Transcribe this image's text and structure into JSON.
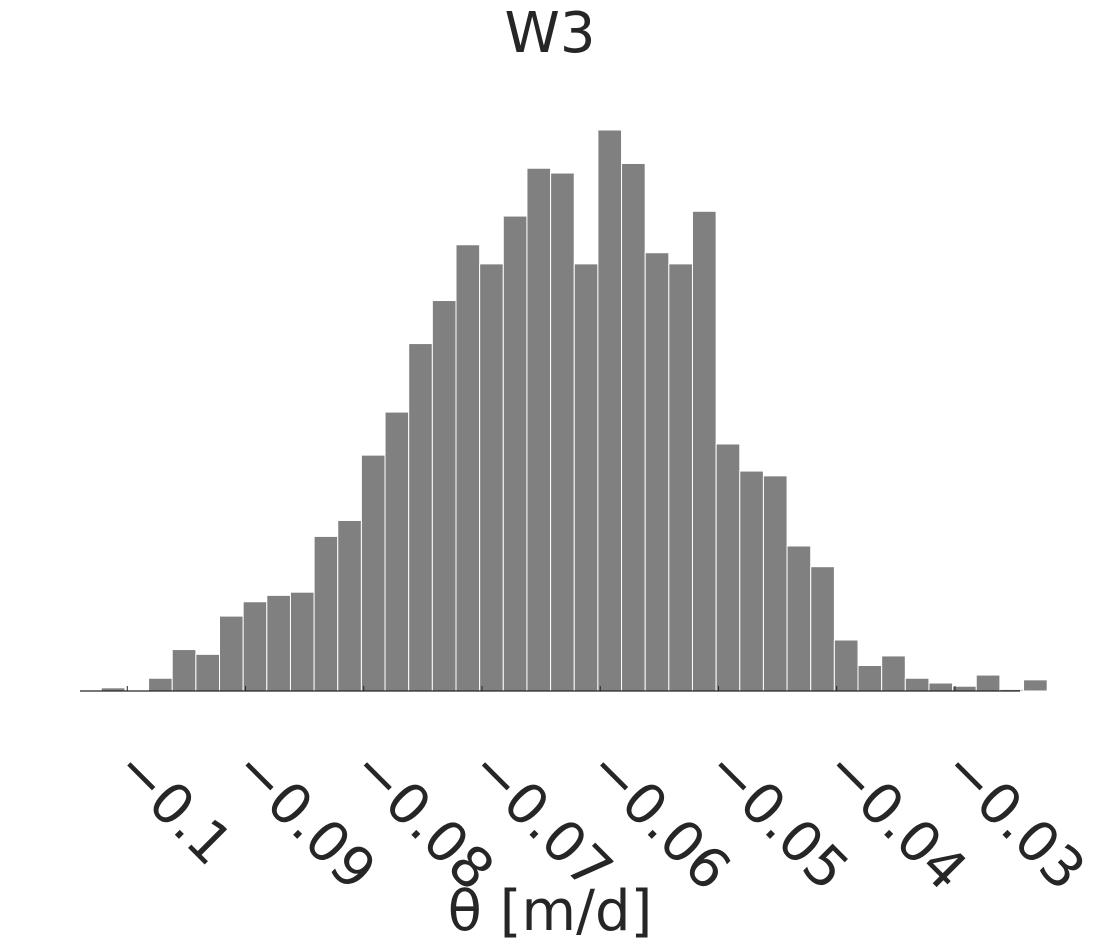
{
  "chart_data": {
    "type": "bar",
    "title": "W3",
    "xlabel": "θ [m/d]",
    "ylabel": "",
    "xlim": [
      -0.104,
      -0.0245
    ],
    "xticks": [
      -0.1,
      -0.09,
      -0.08,
      -0.07,
      -0.06,
      -0.05,
      -0.04,
      -0.03
    ],
    "xtick_labels": [
      "−0.1",
      "−0.09",
      "−0.08",
      "−0.07",
      "−0.06",
      "−0.05",
      "−0.04",
      "−0.03"
    ],
    "bin_start": -0.1022,
    "bin_width": 0.002,
    "values": [
      2,
      0,
      8,
      26,
      23,
      47,
      56,
      60,
      62,
      97,
      107,
      148,
      175,
      218,
      245,
      280,
      268,
      298,
      328,
      325,
      268,
      352,
      331,
      275,
      268,
      301,
      155,
      138,
      135,
      91,
      78,
      32,
      16,
      22,
      8,
      5,
      3,
      10,
      1,
      7
    ],
    "bar_color": "#808080",
    "grid": false,
    "legend": "none"
  }
}
